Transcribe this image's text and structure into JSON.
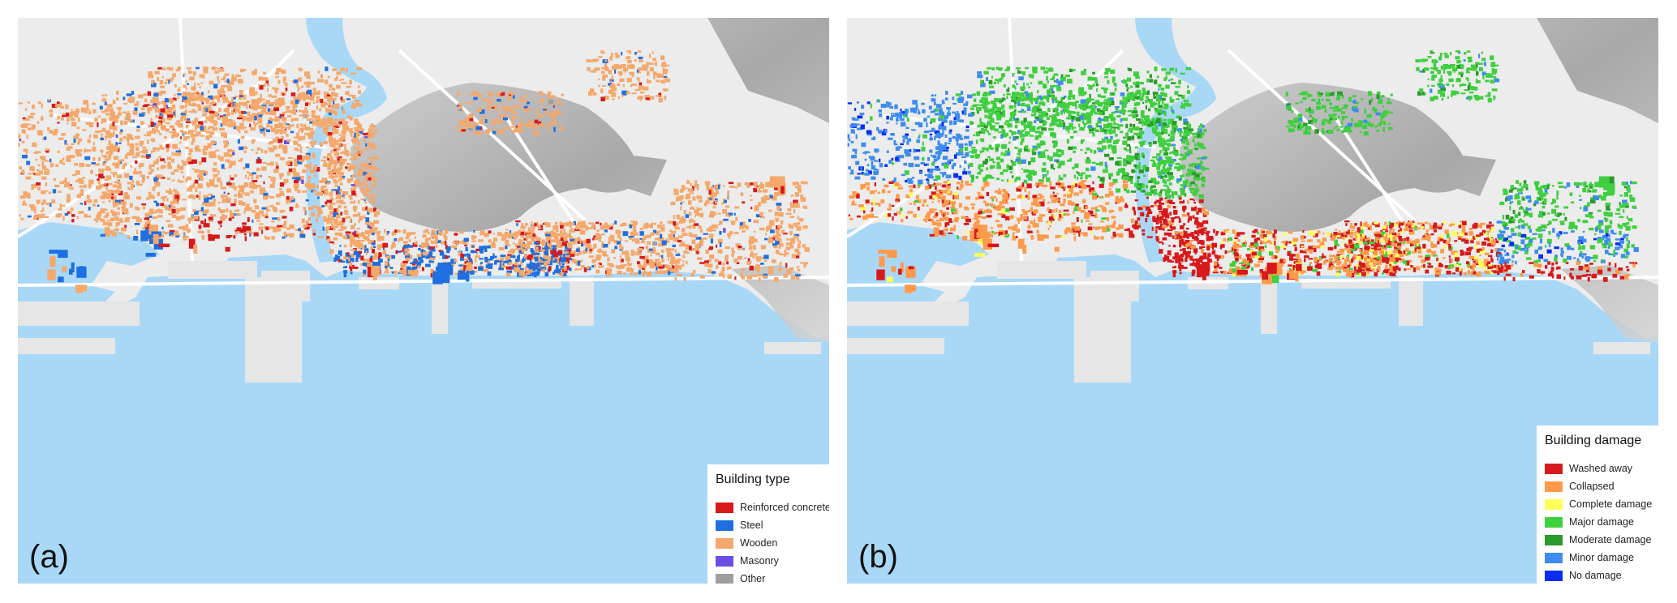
{
  "panels": [
    {
      "id": "a",
      "label": "(a)",
      "legend": {
        "title": "Building type",
        "items": [
          {
            "label": "Reinforced concrete",
            "color": "#d7191c"
          },
          {
            "label": "Steel",
            "color": "#1f6fe0"
          },
          {
            "label": "Wooden",
            "color": "#f5a86b"
          },
          {
            "label": "Masonry",
            "color": "#6a4fe0"
          },
          {
            "label": "Other",
            "color": "#9e9e9e"
          }
        ]
      }
    },
    {
      "id": "b",
      "label": "(b)",
      "legend": {
        "title": "Building damage",
        "items": [
          {
            "label": "Washed away",
            "color": "#d7191c"
          },
          {
            "label": "Collapsed",
            "color": "#ff9a4a"
          },
          {
            "label": "Complete damage",
            "color": "#ffff5a"
          },
          {
            "label": "Major damage",
            "color": "#3fcf3f"
          },
          {
            "label": "Moderate damage",
            "color": "#2a9a2a"
          },
          {
            "label": "Minor damage",
            "color": "#3d8cf0"
          },
          {
            "label": "No damage",
            "color": "#0a2cf5"
          }
        ]
      }
    }
  ],
  "map_colors": {
    "water": "#a9d8f7",
    "land": "#ececec",
    "pier": "#e6e6e6",
    "hill_light": "#d4d4d4",
    "hill_dark": "#9c9c9c",
    "road": "#ffffff"
  }
}
